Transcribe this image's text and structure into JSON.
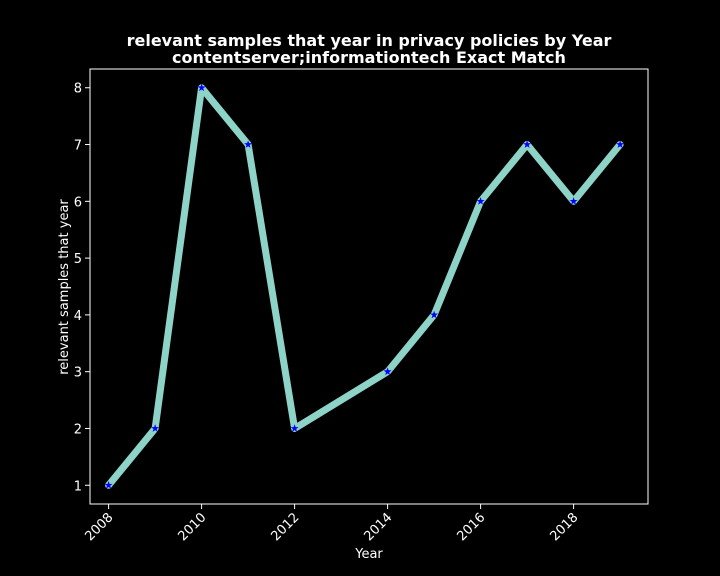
{
  "chart_data": {
    "type": "line",
    "title": "relevant samples that year in privacy policies by Year",
    "subtitle": "contentserver;informationtech Exact Match",
    "xlabel": "Year",
    "ylabel": "relevant samples that year",
    "x": [
      2008,
      2009,
      2010,
      2011,
      2012,
      2014,
      2015,
      2016,
      2017,
      2018,
      2019
    ],
    "series": [
      {
        "values": [
          1,
          2,
          8,
          7,
          2,
          3,
          4,
          6,
          7,
          6,
          7
        ]
      }
    ],
    "xlim": [
      2007.6,
      2019.6
    ],
    "ylim": [
      0.67,
      8.33
    ],
    "xticks": [
      "2008",
      "2010",
      "2012",
      "2014",
      "2016",
      "2018"
    ],
    "yticks": [
      "1",
      "2",
      "3",
      "4",
      "5",
      "6",
      "7",
      "8"
    ],
    "grid": false,
    "line_color": "#8dd3c7",
    "marker_color": "#0000ff",
    "marker": "star",
    "background": "#000000"
  }
}
